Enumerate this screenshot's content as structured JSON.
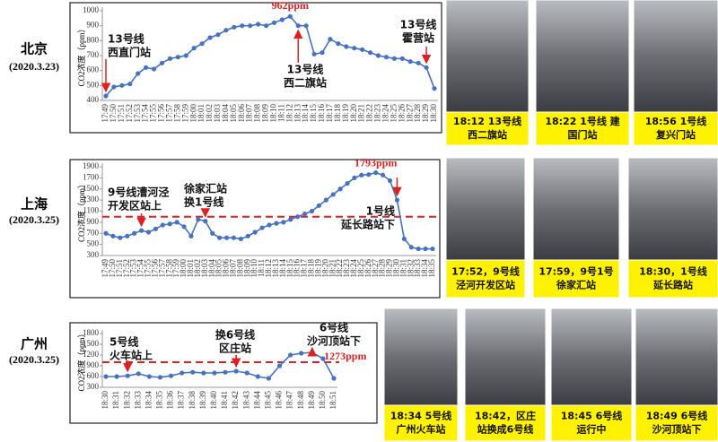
{
  "panels": [
    {
      "city": "北京",
      "date": "(2020.3.23)",
      "photos": [
        {
          "caption": [
            "18:12 13号线",
            "西二旗站"
          ]
        },
        {
          "caption": [
            "18:22 1号线 建",
            "国门站"
          ]
        },
        {
          "caption": [
            "18:56 1号线",
            "复兴门站"
          ]
        }
      ]
    },
    {
      "city": "上海",
      "date": "(2020.3.25)",
      "photos": [
        {
          "caption": [
            "17:52，9号线",
            "泾河开发区站"
          ]
        },
        {
          "caption": [
            "17:59，9号1号",
            "徐家汇站"
          ]
        },
        {
          "caption": [
            "18:30，1号线",
            "延长路站"
          ]
        }
      ]
    },
    {
      "city": "广州",
      "date": "(2020.3.25)",
      "photos": [
        {
          "caption": [
            "18:34 5号线",
            "广州火车站"
          ]
        },
        {
          "caption": [
            "18:42，区庄",
            "站换成6号线"
          ]
        },
        {
          "caption": [
            "18:45 6号线",
            "运行中"
          ]
        },
        {
          "caption": [
            "18:49 6号线",
            "沙河顶站下"
          ]
        }
      ]
    }
  ],
  "chart_data": [
    {
      "type": "line",
      "y_label": "CO2浓度（ppm）",
      "categories": [
        "17:49",
        "17:50",
        "17:51",
        "17:52",
        "17:53",
        "17:54",
        "17:55",
        "17:56",
        "17:57",
        "17:58",
        "17:59",
        "18:00",
        "18:01",
        "18:02",
        "18:03",
        "18:04",
        "18:05",
        "18:06",
        "18:07",
        "18:08",
        "18:09",
        "18:10",
        "18:11",
        "18:12",
        "18:13",
        "18:14",
        "18:15",
        "18:16",
        "18:17",
        "18:18",
        "18:19",
        "18:20",
        "18:21",
        "18:22",
        "18:23",
        "18:24",
        "18:25",
        "18:26",
        "18:27",
        "18:28",
        "18:29",
        "18:30"
      ],
      "series": [
        {
          "color": "#4472c4",
          "values": [
            430,
            490,
            500,
            510,
            580,
            620,
            610,
            650,
            680,
            690,
            700,
            750,
            780,
            820,
            840,
            870,
            890,
            900,
            900,
            910,
            900,
            920,
            940,
            962,
            900,
            900,
            710,
            720,
            810,
            780,
            760,
            750,
            740,
            720,
            700,
            690,
            680,
            680,
            660,
            650,
            620,
            480
          ],
          "value_labels": [
            null,
            null,
            null,
            null,
            null,
            null,
            null,
            null,
            null,
            null,
            null,
            null,
            null,
            null,
            null,
            null,
            null,
            null,
            null,
            null,
            null,
            null,
            null,
            "962ppm",
            null,
            null,
            null,
            null,
            null,
            null,
            null,
            null,
            null,
            null,
            null,
            null,
            null,
            null,
            null,
            null,
            null,
            null
          ],
          "label_color": "#e02020"
        }
      ],
      "ylim": [
        400,
        1000
      ],
      "yticks": [
        400,
        500,
        600,
        700,
        800,
        900,
        1000
      ],
      "annotations": [
        {
          "text": [
            "13号线",
            "西直门站"
          ],
          "x": "17:49"
        },
        {
          "text": [
            "13号线",
            "西二旗站"
          ],
          "x": "18:13"
        },
        {
          "text": [
            "13号线",
            "霍营站"
          ],
          "x": "18:29"
        }
      ],
      "arrow_color": "#e02020"
    },
    {
      "type": "line",
      "y_label": "CO2浓度（ppm）",
      "categories": [
        "17:49",
        "17:50",
        "17:51",
        "17:52",
        "17:53",
        "17:54",
        "17:55",
        "17:56",
        "17:57",
        "17:58",
        "17:59",
        "18:00",
        "18:01",
        "18:02",
        "18:03",
        "18:04",
        "18:05",
        "18:06",
        "18:07",
        "18:08",
        "18:09",
        "18:10",
        "18:11",
        "18:12",
        "18:13",
        "18:14",
        "18:15",
        "18:16",
        "18:17",
        "18:18",
        "18:19",
        "18:20",
        "18:21",
        "18:22",
        "18:23",
        "18:24",
        "18:25",
        "18:26",
        "18:27",
        "18:28",
        "18:29",
        "18:30",
        "18:31",
        "18:32",
        "18:33",
        "18:34",
        "18:35"
      ],
      "series": [
        {
          "color": "#4472c4",
          "values": [
            700,
            650,
            620,
            650,
            700,
            750,
            720,
            780,
            850,
            870,
            900,
            820,
            650,
            950,
            920,
            700,
            620,
            620,
            620,
            600,
            650,
            720,
            800,
            850,
            880,
            900,
            950,
            1000,
            1050,
            1100,
            1200,
            1300,
            1400,
            1500,
            1600,
            1700,
            1750,
            1760,
            1793,
            1750,
            1650,
            1300,
            600,
            450,
            420,
            420,
            420
          ],
          "value_labels": [
            null,
            null,
            null,
            null,
            null,
            null,
            null,
            null,
            null,
            null,
            null,
            null,
            null,
            null,
            null,
            null,
            null,
            null,
            null,
            null,
            null,
            null,
            null,
            null,
            null,
            null,
            null,
            null,
            null,
            null,
            null,
            null,
            null,
            null,
            null,
            null,
            null,
            null,
            "1793ppm",
            null,
            null,
            null,
            null,
            null,
            null,
            null,
            null
          ],
          "label_color": "#e02020"
        }
      ],
      "ylim": [
        300,
        1900
      ],
      "yticks": [
        300,
        500,
        700,
        900,
        1100,
        1300,
        1500,
        1700,
        1900
      ],
      "reference_line": {
        "value": 1000,
        "color": "#e02020"
      },
      "annotations": [
        {
          "text": [
            "9号线漕河泾",
            "开发区站上"
          ],
          "x": "17:54"
        },
        {
          "text": [
            "徐家汇站",
            "换1号线"
          ],
          "x": "18:03"
        },
        {
          "text": [
            "1号线",
            "延长路站下"
          ],
          "x": "18:30"
        }
      ],
      "arrow_color": "#e02020"
    },
    {
      "type": "line",
      "y_label": "CO2浓度（ppm）",
      "categories": [
        "18:30",
        "18:31",
        "18:32",
        "18:33",
        "18:34",
        "18:35",
        "18:36",
        "18:37",
        "18:38",
        "18:39",
        "18:40",
        "18:41",
        "18:42",
        "18:43",
        "18:44",
        "18:45",
        "18:46",
        "18:47",
        "18:48",
        "18:49",
        "18:50",
        "18:51"
      ],
      "series": [
        {
          "color": "#4472c4",
          "values": [
            600,
            600,
            620,
            680,
            600,
            580,
            620,
            700,
            720,
            700,
            700,
            720,
            750,
            700,
            600,
            550,
            900,
            1200,
            1250,
            1273,
            1100,
            550
          ],
          "value_labels": [
            null,
            null,
            null,
            null,
            null,
            null,
            null,
            null,
            null,
            null,
            null,
            null,
            null,
            null,
            null,
            null,
            null,
            null,
            null,
            "1273ppm",
            null,
            null
          ],
          "label_color": "#e02020"
        }
      ],
      "ylim": [
        300,
        1800
      ],
      "yticks": [
        300,
        600,
        900,
        1200,
        1500,
        1800
      ],
      "reference_line": {
        "value": 1000,
        "color": "#e02020"
      },
      "annotations": [
        {
          "text": [
            "5号线",
            "火车站上"
          ],
          "x": "18:32"
        },
        {
          "text": [
            "换6号线",
            "区庄站"
          ],
          "x": "18:42"
        },
        {
          "text": [
            "6号线",
            "沙河顶站下"
          ],
          "x": "18:49"
        }
      ],
      "arrow_color": "#e02020"
    }
  ]
}
